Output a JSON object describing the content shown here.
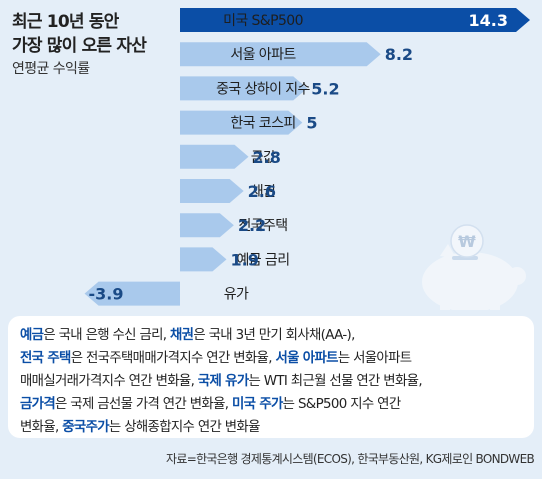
{
  "header": {
    "title_line1": "최근 10년 동안",
    "title_line2": "가장 많이 오른 자산",
    "subtitle": "연평균 수익률"
  },
  "chart_data": {
    "type": "bar",
    "orientation": "horizontal",
    "categories": [
      "미국 S&P500",
      "서울 아파트",
      "중국 상하이 지수",
      "한국 코스피",
      "금값",
      "채권",
      "전국주택",
      "예금 금리",
      "유가"
    ],
    "values": [
      14.3,
      8.2,
      5.2,
      5,
      2.8,
      2.6,
      2.2,
      1.9,
      -3.9
    ],
    "value_labels": [
      "14.3",
      "8.2",
      "5.2",
      "5",
      "2.8",
      "2.6",
      "2.2",
      "1.9",
      "-3.9"
    ],
    "title": "최근 10년 동안 가장 많이 오른 자산",
    "xlabel": "연평균 수익률",
    "highlight_index": 0,
    "colors": {
      "highlight_bar": "#0b4ea6",
      "bar": "#a9c9ec",
      "label": "#1a4a86",
      "highlight_label": "#ffffff",
      "background": "#e4eef8"
    }
  },
  "note": {
    "lines": [
      [
        {
          "t": "예금",
          "b": true
        },
        {
          "t": "은 국내 은행 수신 금리, "
        },
        {
          "t": "채권",
          "b": true
        },
        {
          "t": "은 국내 3년 만기 회사채(AA-),"
        }
      ],
      [
        {
          "t": "전국 주택",
          "b": true
        },
        {
          "t": "은 전국주택매매가격지수 연간 변화율, "
        },
        {
          "t": "서울 아파트",
          "b": true
        },
        {
          "t": "는 서울아파트"
        }
      ],
      [
        {
          "t": "매매실거래가격지수 연간 변화율, "
        },
        {
          "t": "국제 유가",
          "b": true
        },
        {
          "t": "는 WTI 최근월 선물 연간 변화율,"
        }
      ],
      [
        {
          "t": "금가격",
          "b": true
        },
        {
          "t": "은 국제 금선물 가격 연간 변화율, "
        },
        {
          "t": "미국 주가",
          "b": true
        },
        {
          "t": "는 S&P500 지수 연간"
        }
      ],
      [
        {
          "t": "변화율, "
        },
        {
          "t": "중국주가",
          "b": true
        },
        {
          "t": "는 상해종합지수 연간 변화율"
        }
      ]
    ]
  },
  "source": "자료=한국은행 경제통계시스템(ECOS), 한국부동산원, KG제로인 BONDWEB",
  "decor": {
    "piggy_bank_icon": "piggy-bank-icon",
    "coin_icon": "won-coin-icon",
    "coin_symbol": "₩"
  }
}
